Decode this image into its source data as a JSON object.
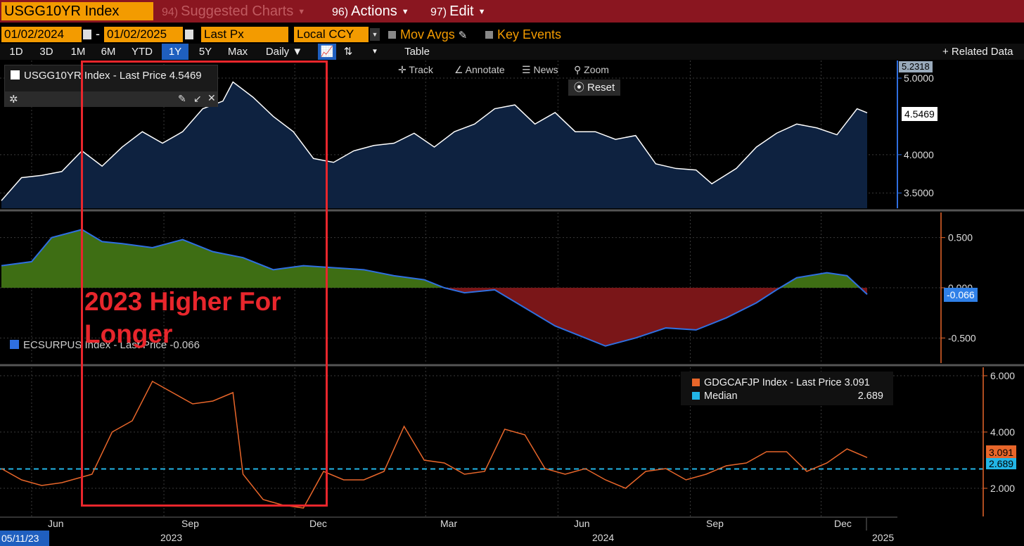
{
  "toolbar": {
    "ticker": "USGG10YR Index",
    "suggested_num": "94)",
    "suggested_label": "Suggested Charts",
    "actions_num": "96)",
    "actions_label": "Actions",
    "edit_num": "97)",
    "edit_label": "Edit",
    "start_date": "01/02/2024",
    "end_date": "01/02/2025",
    "date_sep": "-",
    "field": "Last Px",
    "currency": "Local CCY",
    "mov_avgs": "Mov Avgs",
    "key_events": "Key Events",
    "ranges": [
      "1D",
      "3D",
      "1M",
      "6M",
      "YTD",
      "1Y",
      "5Y",
      "Max"
    ],
    "active_range": "1Y",
    "frequency": "Daily",
    "table_label": "Table",
    "related_data": "+ Related Data",
    "track": "Track",
    "annotate": "Annotate",
    "news": "News",
    "zoom": "Zoom",
    "reset": "Reset"
  },
  "annotation": {
    "text": "2023 Higher For Longer",
    "color": "#e8262c"
  },
  "colors": {
    "accent_orange": "#f39b00",
    "header_red": "#8a1620",
    "panel1_fill": "#0e2240",
    "panel2_pos_fill": "#3e6e14",
    "panel2_neg_fill": "#7a1618",
    "panel2_line": "#2f6fe0",
    "panel3_line": "#e8662a",
    "median_line": "#22b5e6"
  },
  "chart_data": [
    {
      "type": "area",
      "legend": "USGG10YR Index - Last Price 4.5469",
      "last_value": "4.5469",
      "top_value": "5.2318",
      "yticks": [
        "5.0000",
        "4.0000",
        "3.5000"
      ],
      "ylim": [
        3.3,
        5.23
      ],
      "x": [
        "2023-05-11",
        "2023-05-25",
        "2023-06-08",
        "2023-06-22",
        "2023-07-06",
        "2023-07-20",
        "2023-08-03",
        "2023-08-17",
        "2023-08-31",
        "2023-09-14",
        "2023-09-28",
        "2023-10-12",
        "2023-10-19",
        "2023-11-02",
        "2023-11-16",
        "2023-11-30",
        "2023-12-14",
        "2023-12-28",
        "2024-01-11",
        "2024-01-25",
        "2024-02-08",
        "2024-02-22",
        "2024-03-07",
        "2024-03-21",
        "2024-04-04",
        "2024-04-18",
        "2024-05-02",
        "2024-05-16",
        "2024-05-30",
        "2024-06-13",
        "2024-06-27",
        "2024-07-11",
        "2024-07-25",
        "2024-08-08",
        "2024-08-22",
        "2024-09-05",
        "2024-09-16",
        "2024-10-03",
        "2024-10-17",
        "2024-10-31",
        "2024-11-14",
        "2024-11-28",
        "2024-12-12",
        "2024-12-26",
        "2025-01-02"
      ],
      "values": [
        3.4,
        3.7,
        3.73,
        3.78,
        4.05,
        3.85,
        4.1,
        4.3,
        4.15,
        4.3,
        4.6,
        4.7,
        4.95,
        4.75,
        4.5,
        4.3,
        3.95,
        3.9,
        4.05,
        4.12,
        4.15,
        4.28,
        4.1,
        4.3,
        4.4,
        4.6,
        4.65,
        4.4,
        4.55,
        4.3,
        4.3,
        4.2,
        4.25,
        3.88,
        3.82,
        3.8,
        3.62,
        3.82,
        4.1,
        4.28,
        4.4,
        4.35,
        4.26,
        4.6,
        4.5469
      ]
    },
    {
      "type": "area",
      "legend": "ECSURPUS Index - Last Price -0.066",
      "last_value": "-0.066",
      "yticks": [
        "0.500",
        "0.000",
        "-0.500"
      ],
      "ylim": [
        -0.75,
        0.75
      ],
      "x": [
        "2023-05-11",
        "2023-06-01",
        "2023-06-15",
        "2023-07-06",
        "2023-07-20",
        "2023-08-03",
        "2023-08-24",
        "2023-09-14",
        "2023-10-05",
        "2023-10-26",
        "2023-11-16",
        "2023-12-07",
        "2023-12-28",
        "2024-01-18",
        "2024-02-08",
        "2024-02-29",
        "2024-03-14",
        "2024-03-28",
        "2024-04-18",
        "2024-05-09",
        "2024-05-30",
        "2024-06-20",
        "2024-07-04",
        "2024-07-25",
        "2024-08-15",
        "2024-09-05",
        "2024-09-26",
        "2024-10-17",
        "2024-10-31",
        "2024-11-14",
        "2024-12-05",
        "2024-12-19",
        "2025-01-02"
      ],
      "values": [
        0.22,
        0.26,
        0.5,
        0.58,
        0.46,
        0.44,
        0.4,
        0.48,
        0.36,
        0.3,
        0.18,
        0.22,
        0.2,
        0.18,
        0.12,
        0.08,
        0.0,
        -0.05,
        -0.02,
        -0.2,
        -0.38,
        -0.5,
        -0.58,
        -0.5,
        -0.4,
        -0.42,
        -0.3,
        -0.15,
        -0.02,
        0.1,
        0.15,
        0.12,
        -0.066
      ]
    },
    {
      "type": "line",
      "legend": "GDGCAFJP Index - Last Price 3.091",
      "series_name": "GDGCAFJP Index",
      "last_value": "3.091",
      "median_label": "Median",
      "median_value": "2.689",
      "yticks": [
        "6.000",
        "4.000",
        "2.000"
      ],
      "ylim": [
        1.0,
        6.3
      ],
      "x": [
        "2023-05-11",
        "2023-05-25",
        "2023-06-08",
        "2023-06-22",
        "2023-07-06",
        "2023-07-13",
        "2023-07-27",
        "2023-08-10",
        "2023-08-24",
        "2023-09-07",
        "2023-09-21",
        "2023-10-05",
        "2023-10-19",
        "2023-10-26",
        "2023-11-09",
        "2023-11-23",
        "2023-12-07",
        "2023-12-21",
        "2024-01-04",
        "2024-01-18",
        "2024-02-01",
        "2024-02-15",
        "2024-02-29",
        "2024-03-14",
        "2024-03-28",
        "2024-04-11",
        "2024-04-25",
        "2024-05-09",
        "2024-05-23",
        "2024-06-06",
        "2024-06-20",
        "2024-07-04",
        "2024-07-18",
        "2024-08-01",
        "2024-08-15",
        "2024-08-29",
        "2024-09-12",
        "2024-09-26",
        "2024-10-10",
        "2024-10-24",
        "2024-11-07",
        "2024-11-21",
        "2024-12-05",
        "2024-12-19",
        "2025-01-02"
      ],
      "values": [
        2.7,
        2.3,
        2.1,
        2.2,
        2.4,
        2.5,
        4.0,
        4.4,
        5.8,
        5.4,
        5.0,
        5.1,
        5.4,
        2.5,
        1.6,
        1.4,
        1.3,
        2.6,
        2.3,
        2.3,
        2.6,
        4.2,
        3.0,
        2.9,
        2.5,
        2.6,
        4.1,
        3.9,
        2.7,
        2.5,
        2.7,
        2.3,
        2.0,
        2.6,
        2.7,
        2.3,
        2.5,
        2.8,
        2.9,
        3.3,
        3.3,
        2.6,
        2.9,
        3.4,
        3.091
      ]
    }
  ],
  "x_axis": {
    "month_labels": [
      "Jun",
      "Sep",
      "Dec",
      "Mar",
      "Jun",
      "Sep",
      "Dec"
    ],
    "year_labels": [
      "2023",
      "2024",
      "2025"
    ],
    "start_label": "05/11/23"
  }
}
